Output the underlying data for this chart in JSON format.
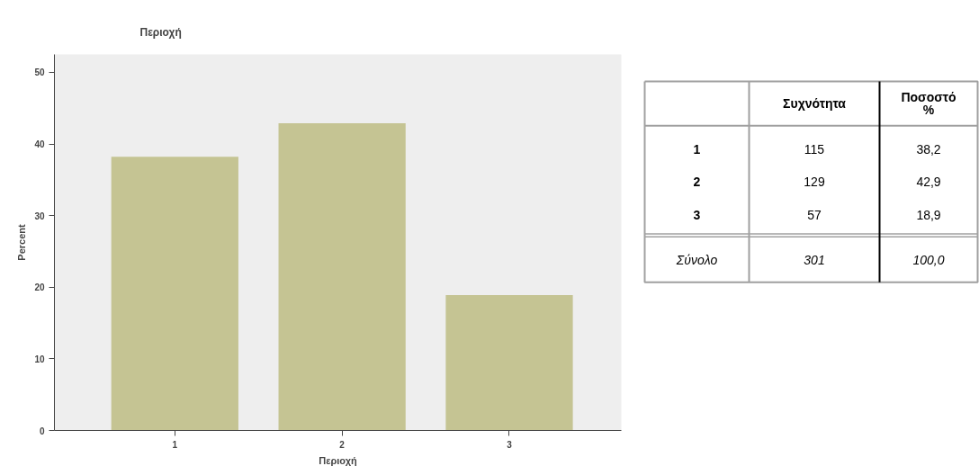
{
  "chart_data": [
    {
      "type": "bar",
      "title": "Περιοχή",
      "xlabel": "Περιοχή",
      "ylabel": "Percent",
      "categories": [
        "1",
        "2",
        "3"
      ],
      "values": [
        38.2,
        42.9,
        18.9
      ],
      "color": "#c5c493",
      "ylim": [
        0,
        52.5
      ],
      "yticks": [
        0,
        10,
        20,
        30,
        40,
        50
      ]
    },
    {
      "type": "other",
      "categories": [
        "1",
        "2",
        "3",
        "Σύνολο"
      ],
      "series": [
        {
          "name": "Συχνότητα",
          "values": [
            115,
            129,
            57,
            301
          ],
          "value_labels": [
            "115",
            "129",
            "57",
            "301"
          ]
        },
        {
          "name": "Ποσοστό %",
          "values": [
            38.2,
            42.9,
            18.9,
            100.0
          ],
          "value_labels": [
            "38,2",
            "42,9",
            "18,9",
            "100,0"
          ]
        }
      ]
    }
  ]
}
